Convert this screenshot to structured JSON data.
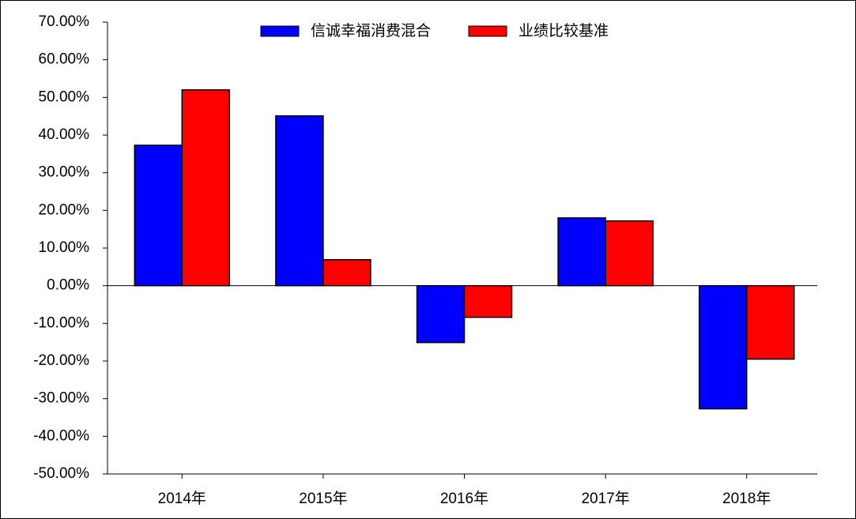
{
  "chart_data": {
    "type": "bar",
    "categories": [
      "2014年",
      "2015年",
      "2016年",
      "2017年",
      "2018年"
    ],
    "series": [
      {
        "name": "信诚幸福消费混合",
        "color": "#0000ff",
        "values": [
          37.3,
          45.1,
          -15.1,
          18.0,
          -32.7
        ]
      },
      {
        "name": "业绩比较基准",
        "color": "#ff0000",
        "values": [
          52.0,
          6.9,
          -8.4,
          17.2,
          -19.5
        ]
      }
    ],
    "ylim": [
      -50,
      70
    ],
    "yticks": [
      {
        "value": 70,
        "label": "70.00%"
      },
      {
        "value": 60,
        "label": "60.00%"
      },
      {
        "value": 50,
        "label": "50.00%"
      },
      {
        "value": 40,
        "label": "40.00%"
      },
      {
        "value": 30,
        "label": "30.00%"
      },
      {
        "value": 20,
        "label": "20.00%"
      },
      {
        "value": 10,
        "label": "10.00%"
      },
      {
        "value": 0,
        "label": "0.00%"
      },
      {
        "value": -10,
        "label": "-10.00%"
      },
      {
        "value": -20,
        "label": "-20.00%"
      },
      {
        "value": -30,
        "label": "-30.00%"
      },
      {
        "value": -40,
        "label": "-40.00%"
      },
      {
        "value": -50,
        "label": "-50.00%"
      }
    ],
    "grid": false
  }
}
